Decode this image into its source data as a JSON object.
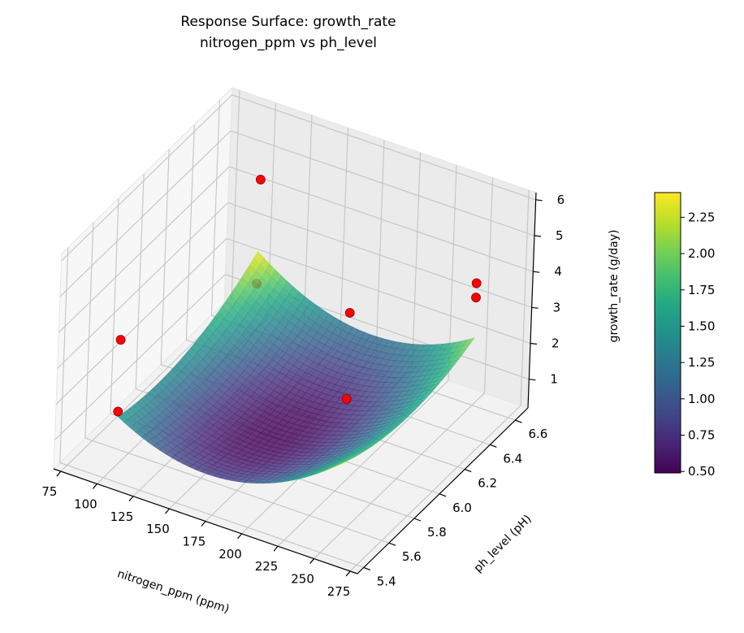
{
  "chart_data": {
    "type": "surface3d",
    "title": "Response Surface: growth_rate",
    "subtitle": "nitrogen_ppm vs ph_level",
    "xlabel": "nitrogen_ppm (ppm)",
    "ylabel": "ph_level (pH)",
    "zlabel": "growth_rate (g/day)",
    "xlim": [
      70,
      280
    ],
    "ylim": [
      5.35,
      6.7
    ],
    "zlim": [
      0.2,
      6.2
    ],
    "x_ticks": [
      "75",
      "100",
      "125",
      "150",
      "175",
      "200",
      "225",
      "250",
      "275"
    ],
    "y_ticks": [
      "5.4",
      "5.6",
      "5.8",
      "6.0",
      "6.2",
      "6.4",
      "6.6"
    ],
    "z_ticks": [
      "1",
      "2",
      "3",
      "4",
      "5",
      "6"
    ],
    "surface": {
      "x_range": [
        100,
        250
      ],
      "y_range": [
        5.5,
        6.6
      ],
      "colormap": "viridis",
      "alpha": 0.8
    },
    "scatter": {
      "color": "#ff0000",
      "points": [
        {
          "x": 100,
          "y": 5.5,
          "z": 3.7
        },
        {
          "x": 100,
          "y": 5.5,
          "z": 1.7
        },
        {
          "x": 100,
          "y": 6.6,
          "z": 4.4
        },
        {
          "x": 100,
          "y": 6.6,
          "z": 1.5
        },
        {
          "x": 210,
          "y": 6.05,
          "z": 4.1
        },
        {
          "x": 210,
          "y": 6.05,
          "z": 1.7
        },
        {
          "x": 250,
          "y": 6.6,
          "z": 3.6
        },
        {
          "x": 250,
          "y": 6.6,
          "z": 3.2
        }
      ]
    },
    "colorbar": {
      "range": [
        0.49,
        2.42
      ],
      "ticks": [
        "0.50",
        "0.75",
        "1.00",
        "1.25",
        "1.50",
        "1.75",
        "2.00",
        "2.25"
      ]
    },
    "grid": true
  }
}
